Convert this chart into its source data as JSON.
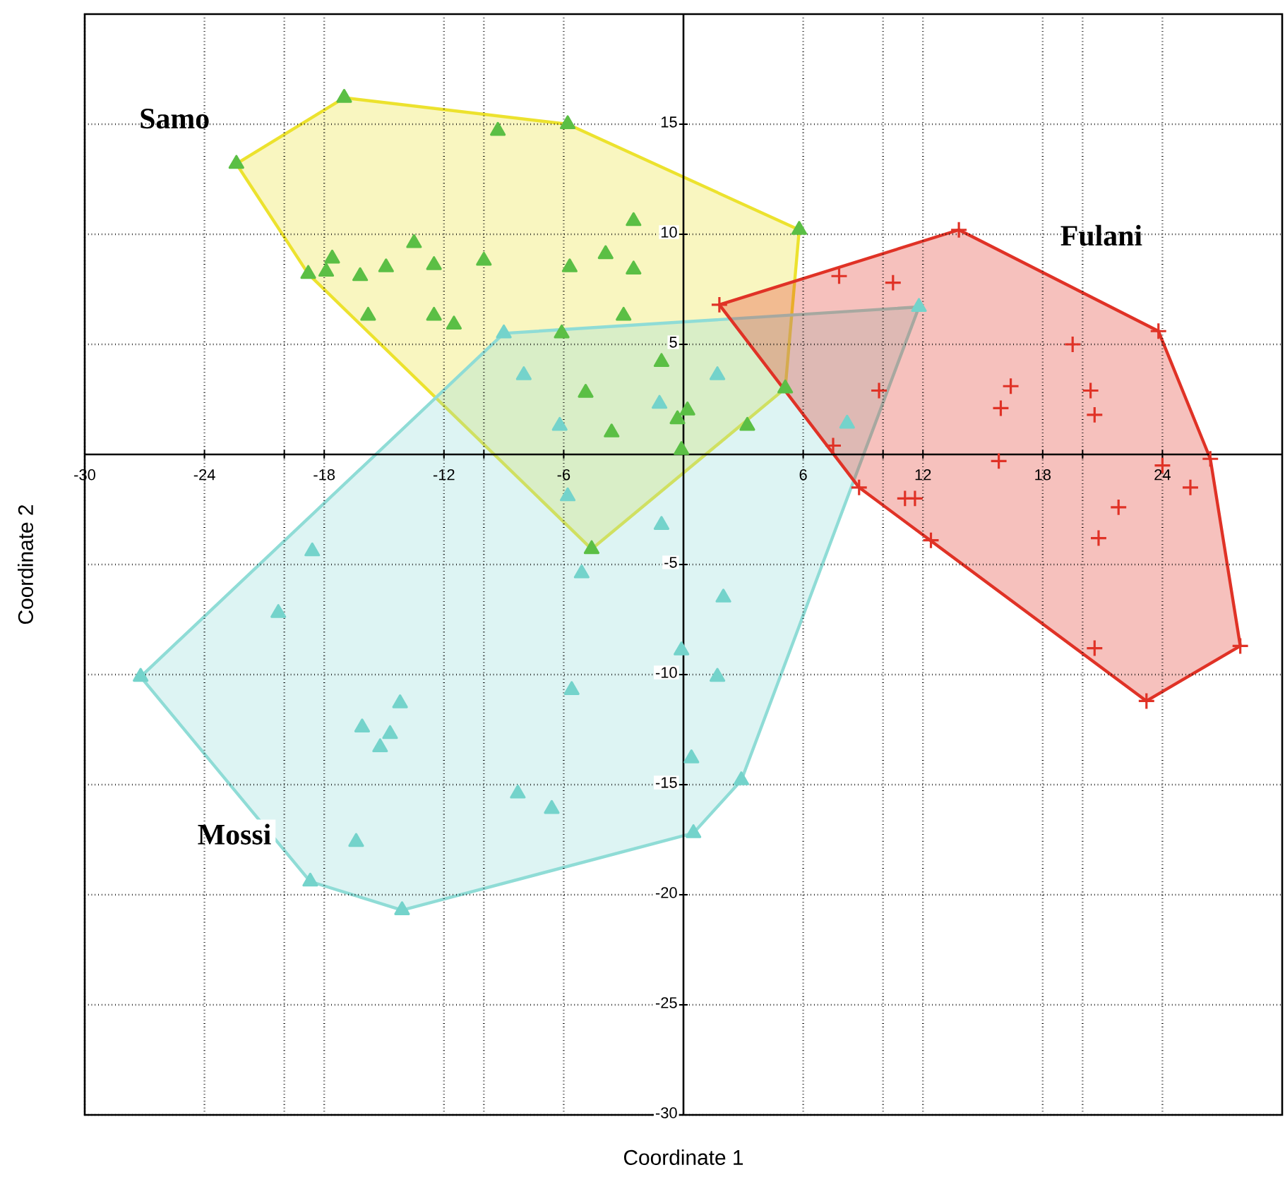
{
  "chart_data": {
    "type": "scatter",
    "xlabel": "Coordinate 1",
    "ylabel": "Coordinate 2",
    "xlim": [
      -30,
      30
    ],
    "ylim": [
      -30,
      20
    ],
    "xticks": [
      -30,
      -24,
      {
        "value": -20,
        "label": null
      },
      -18,
      -12,
      {
        "value": -10,
        "label": null
      },
      -6,
      6,
      {
        "value": 10,
        "label": null
      },
      12,
      18,
      {
        "value": 20,
        "label": null
      },
      24
    ],
    "yticks": [
      -30,
      -25,
      -20,
      -15,
      -10,
      -5,
      5,
      10,
      15
    ],
    "grid": true,
    "series": [
      {
        "type": "area",
        "color": "#ece22e",
        "x": [
          -22.4,
          -17.0,
          -5.8,
          5.8,
          5.1,
          -4.6,
          -18.8
        ],
        "values": [
          13.2,
          16.2,
          15.0,
          10.2,
          3.0,
          -4.3,
          8.2
        ]
      },
      {
        "type": "area",
        "color": "#8fdcd6",
        "x": [
          -27.2,
          -9.0,
          11.8,
          2.9,
          0.5,
          -14.1,
          -18.7
        ],
        "values": [
          -10.1,
          5.5,
          6.7,
          -14.8,
          -17.2,
          -20.7,
          -19.4
        ]
      },
      {
        "type": "area",
        "color": "#e03226",
        "x": [
          1.8,
          13.8,
          23.8,
          26.4,
          27.9,
          23.2,
          8.8
        ],
        "values": [
          6.8,
          10.2,
          5.6,
          -0.2,
          -8.7,
          -11.2,
          -1.5
        ]
      },
      {
        "name": "Samo",
        "color": "#5bbf45",
        "marker": "triangle",
        "x": [
          -22.4,
          -17.0,
          -9.3,
          -5.8,
          -2.5,
          -13.5,
          -17.6,
          -18.8,
          -17.9,
          -16.2,
          -14.9,
          -12.5,
          -10.0,
          -5.7,
          -3.9,
          -2.5,
          -15.8,
          -12.5,
          -11.5,
          -3.0,
          -6.1,
          -1.1,
          -4.9,
          -3.6,
          -0.3,
          0.2,
          -0.1,
          5.8,
          5.1,
          3.2,
          -4.6
        ],
        "values": [
          13.2,
          16.2,
          14.7,
          15.0,
          10.6,
          9.6,
          8.9,
          8.2,
          8.3,
          8.1,
          8.5,
          8.6,
          8.8,
          8.5,
          9.1,
          8.4,
          6.3,
          6.3,
          5.9,
          6.3,
          5.5,
          4.2,
          2.8,
          1.0,
          1.6,
          2.0,
          0.2,
          10.2,
          3.0,
          1.3,
          -4.3
        ]
      },
      {
        "name": "Mossi",
        "color": "#74d3cb",
        "marker": "triangle",
        "x": [
          -9.0,
          -8.0,
          -6.2,
          -1.2,
          1.7,
          11.8,
          8.2,
          -1.1,
          2.0,
          -0.1,
          1.7,
          -5.8,
          -5.1,
          -18.6,
          -20.3,
          -27.2,
          -5.6,
          -14.2,
          -16.1,
          -14.7,
          -15.2,
          0.4,
          2.9,
          -8.3,
          -6.6,
          0.5,
          -16.4,
          -18.7,
          -14.1
        ],
        "values": [
          5.5,
          3.6,
          1.3,
          2.3,
          3.6,
          6.7,
          1.4,
          -3.2,
          -6.5,
          -8.9,
          -10.1,
          -1.9,
          -5.4,
          -4.4,
          -7.2,
          -10.1,
          -10.7,
          -11.3,
          -12.4,
          -12.7,
          -13.3,
          -13.8,
          -14.8,
          -15.4,
          -16.1,
          -17.2,
          -17.6,
          -19.4,
          -20.7
        ]
      },
      {
        "name": "Fulani",
        "color": "#e03226",
        "marker": "cross",
        "x": [
          1.8,
          7.8,
          10.5,
          13.8,
          23.8,
          19.5,
          9.8,
          16.4,
          15.9,
          20.4,
          20.6,
          7.5,
          15.8,
          26.4,
          24.0,
          25.4,
          8.8,
          11.1,
          11.6,
          21.8,
          12.4,
          20.8,
          20.6,
          27.9,
          23.2
        ],
        "values": [
          6.8,
          8.1,
          7.8,
          10.2,
          5.6,
          5.0,
          2.9,
          3.1,
          2.1,
          2.9,
          1.8,
          0.4,
          -0.3,
          -0.2,
          -0.5,
          -1.5,
          -1.5,
          -2.0,
          -2.0,
          -2.4,
          -3.9,
          -3.8,
          -8.8,
          -8.7,
          -11.2
        ]
      }
    ]
  }
}
